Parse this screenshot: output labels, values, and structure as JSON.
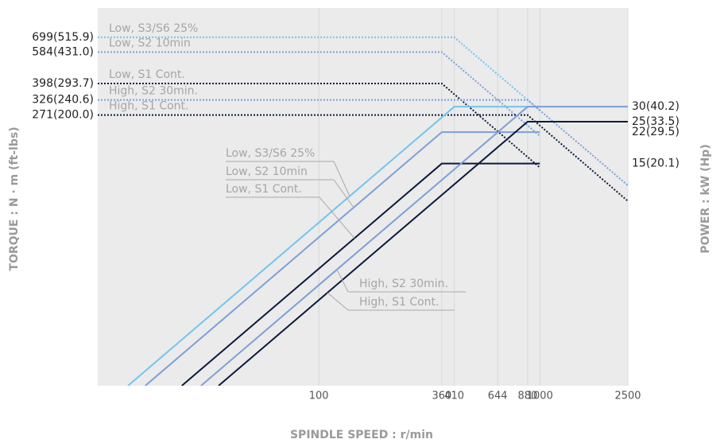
{
  "chart_data": {
    "type": "line",
    "x_label": "SPINDLE SPEED : r/min",
    "y_label": "TORQUE : N · m (ft-lbs)",
    "y2_label": "POWER : kW (Hp)",
    "x_scale": "log",
    "y_scale": "log",
    "y2_scale": "log",
    "xlim": [
      10,
      2500
    ],
    "xticks": [
      100,
      360,
      410,
      644,
      880,
      1000,
      2500
    ],
    "ylim": [
      10,
      1000
    ],
    "yticks": [
      {
        "value": 271,
        "label": "271(200.0)"
      },
      {
        "value": 326,
        "label": "326(240.6)"
      },
      {
        "value": 398,
        "label": "398(293.7)"
      },
      {
        "value": 584,
        "label": "584(431.0)"
      },
      {
        "value": 699,
        "label": "699(515.9)"
      }
    ],
    "y2lim": [
      1,
      100
    ],
    "y2ticks": [
      {
        "value": 15,
        "label": "15(20.1)"
      },
      {
        "value": 22,
        "label": "22(29.5)"
      },
      {
        "value": 25,
        "label": "25(33.5)"
      },
      {
        "value": 30,
        "label": "30(40.2)"
      }
    ],
    "grid": true,
    "series": [
      {
        "name": "Low, S3/S6 25%",
        "color": "#72c5ef",
        "axis": "y",
        "line_style": "dotted",
        "x": [
          10,
          410,
          1000
        ],
        "values": [
          699,
          699,
          287
        ]
      },
      {
        "name": "Low, S2 10min",
        "color": "#7d9fd9",
        "axis": "y",
        "line_style": "dotted",
        "x": [
          10,
          360,
          1000
        ],
        "values": [
          584,
          584,
          210
        ]
      },
      {
        "name": "Low, S1 Cont.",
        "color": "#0c1a3c",
        "axis": "y",
        "line_style": "dotted",
        "x": [
          10,
          360,
          1000
        ],
        "values": [
          398,
          398,
          143
        ]
      },
      {
        "name": "High, S2 30min.",
        "color": "#7d9fd9",
        "axis": "y",
        "line_style": "dotted",
        "x": [
          10,
          880,
          2500
        ],
        "values": [
          326,
          326,
          115
        ]
      },
      {
        "name": "High, S1 Cont.",
        "color": "#0c1a3c",
        "axis": "y",
        "line_style": "dotted",
        "x": [
          10,
          880,
          2500
        ],
        "values": [
          271,
          271,
          95
        ]
      },
      {
        "name": "Low, S3/S6 25%",
        "color": "#72c5ef",
        "axis": "y2",
        "line_style": "solid",
        "x": [
          13.7,
          410,
          1000
        ],
        "values": [
          1,
          30,
          30
        ]
      },
      {
        "name": "Low, S2 10min",
        "color": "#7d9fd9",
        "axis": "y2",
        "line_style": "solid",
        "x": [
          16.4,
          360,
          1000
        ],
        "values": [
          1,
          22,
          22
        ]
      },
      {
        "name": "Low, S1 Cont.",
        "color": "#0c1a3c",
        "axis": "y2",
        "line_style": "solid",
        "x": [
          24,
          360,
          1000
        ],
        "values": [
          1,
          15,
          15
        ]
      },
      {
        "name": "High, S2 30min.",
        "color": "#7d9fd9",
        "axis": "y2",
        "line_style": "solid",
        "x": [
          29.3,
          880,
          2500
        ],
        "values": [
          1,
          30,
          30
        ]
      },
      {
        "name": "High, S1 Cont.",
        "color": "#0c1a3c",
        "axis": "y2",
        "line_style": "solid",
        "x": [
          35.2,
          880,
          2500
        ],
        "values": [
          1,
          25,
          25
        ]
      }
    ]
  }
}
